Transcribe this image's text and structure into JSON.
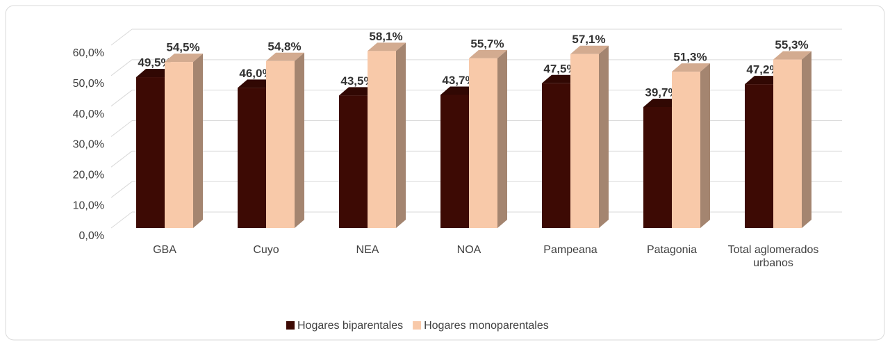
{
  "chart_data": {
    "type": "bar3d",
    "categories": [
      "GBA",
      "Cuyo",
      "NEA",
      "NOA",
      "Pampeana",
      "Patagonia",
      "Total aglomerados urbanos"
    ],
    "series": [
      {
        "name": "Hogares biparentales",
        "color": "#3d0a04",
        "values": [
          49.5,
          46.0,
          43.5,
          43.7,
          47.5,
          39.7,
          47.2
        ],
        "value_labels": [
          "49,5%",
          "46,0%",
          "43,5%",
          "43,7%",
          "47,5%",
          "39,7%",
          "47,2%"
        ]
      },
      {
        "name": "Hogares monoparentales",
        "color": "#f8c9a9",
        "values": [
          54.5,
          54.8,
          58.1,
          55.7,
          57.1,
          51.3,
          55.3
        ],
        "value_labels": [
          "54,5%",
          "54,8%",
          "58,1%",
          "55,7%",
          "57,1%",
          "51,3%",
          "55,3%"
        ]
      }
    ],
    "ylim": [
      0,
      60
    ],
    "yticks": [
      {
        "value": 0,
        "label": "0,0%"
      },
      {
        "value": 10,
        "label": "10,0%"
      },
      {
        "value": 20,
        "label": "20,0%"
      },
      {
        "value": 30,
        "label": "30,0%"
      },
      {
        "value": 40,
        "label": "40,0%"
      },
      {
        "value": 50,
        "label": "50,0%"
      },
      {
        "value": 60,
        "label": "60,0%"
      }
    ],
    "grid": true,
    "legend": "bottom"
  }
}
